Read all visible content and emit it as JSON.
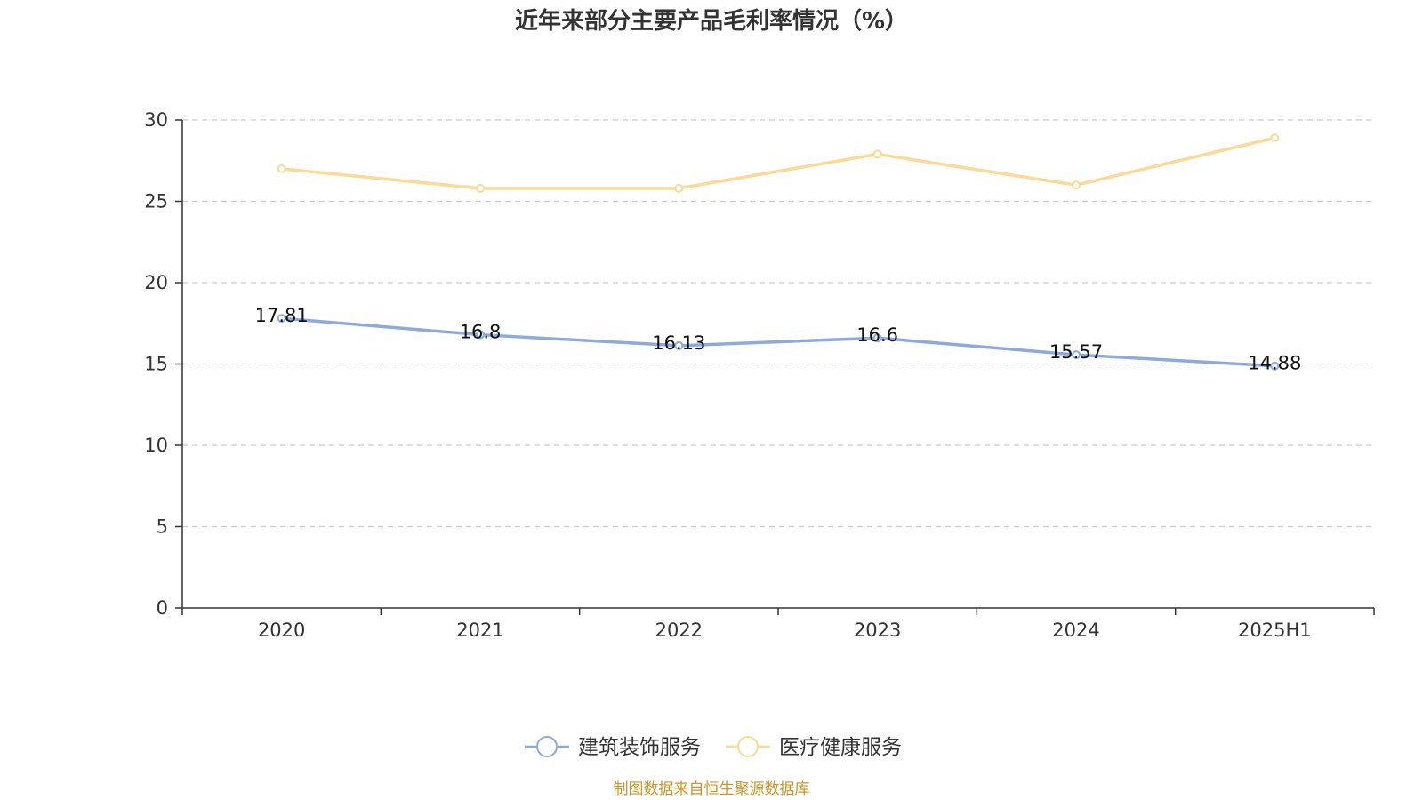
{
  "chart_data": {
    "type": "line",
    "title": "近年来部分主要产品毛利率情况（%）",
    "categories": [
      "2020",
      "2021",
      "2022",
      "2023",
      "2024",
      "2025H1"
    ],
    "series": [
      {
        "name": "建筑装饰服务",
        "color": "#8eaadb",
        "values": [
          17.81,
          16.8,
          16.13,
          16.6,
          15.57,
          14.88
        ],
        "labels": [
          "17.81",
          "16.8",
          "16.13",
          "16.6",
          "15.57",
          "14.88"
        ]
      },
      {
        "name": "医疗健康服务",
        "color": "#fcd996",
        "values": [
          27.0,
          25.8,
          25.8,
          27.9,
          26.0,
          28.9
        ]
      }
    ],
    "ylim": [
      0,
      30
    ],
    "yticks": [
      "0",
      "5",
      "10",
      "15",
      "20",
      "25",
      "30"
    ],
    "ytick_values": [
      0,
      5,
      10,
      15,
      20,
      25,
      30
    ],
    "grid": true,
    "legend_position": "bottom-center"
  },
  "source": {
    "text": "制图数据来自恒生聚源数据库",
    "color": "#c9962a"
  }
}
